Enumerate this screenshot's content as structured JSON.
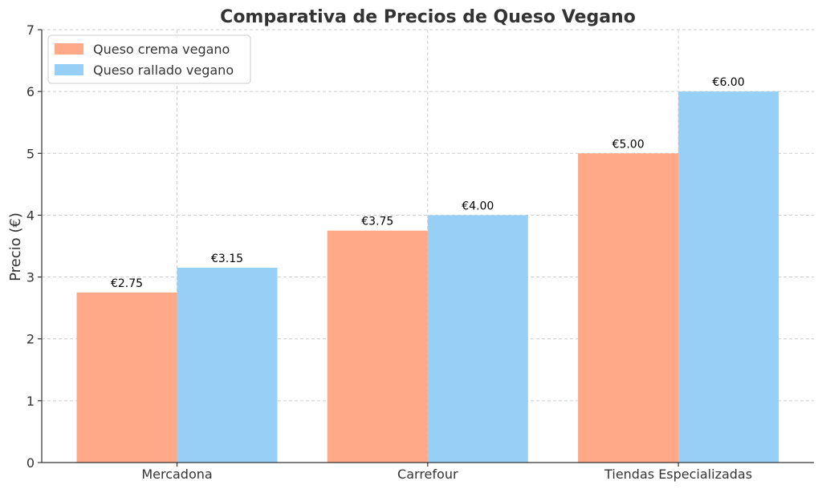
{
  "chart_data": {
    "type": "bar",
    "title": "Comparativa de Precios de Queso Vegano",
    "xlabel": "",
    "ylabel": "Precio (€)",
    "categories": [
      "Mercadona",
      "Carrefour",
      "Tiendas Especializadas"
    ],
    "series": [
      {
        "name": "Queso crema vegano",
        "values": [
          2.75,
          3.75,
          5.0
        ],
        "labels": [
          "€2.75",
          "€3.75",
          "€5.00"
        ],
        "color": "#FFA988"
      },
      {
        "name": "Queso rallado vegano",
        "values": [
          3.15,
          4.0,
          6.0
        ],
        "labels": [
          "€3.15",
          "€4.00",
          "€6.00"
        ],
        "color": "#96D0F7"
      }
    ],
    "ylim": [
      0,
      7
    ],
    "yticks": [
      0,
      1,
      2,
      3,
      4,
      5,
      6,
      7
    ],
    "grid": true,
    "legend_position": "top-left"
  }
}
